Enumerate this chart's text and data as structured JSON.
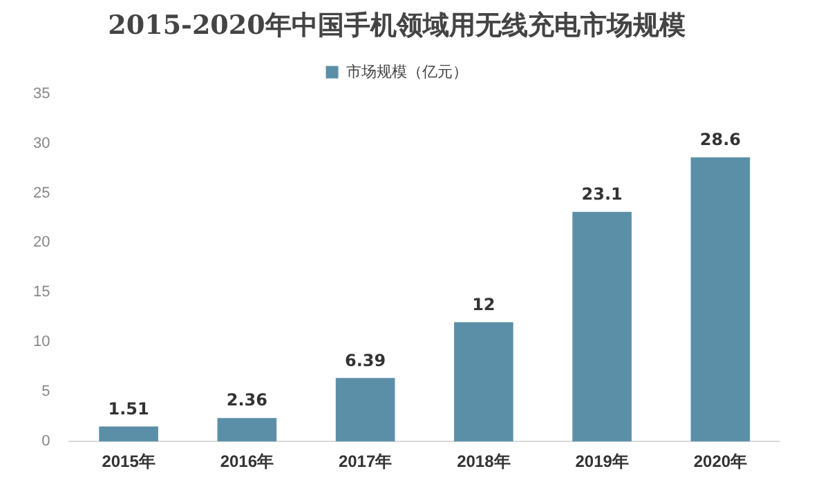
{
  "chart_data": {
    "type": "bar",
    "title": "2015-2020年中国手机领域用无线充电市场规模",
    "categories": [
      "2015年",
      "2016年",
      "2017年",
      "2018年",
      "2019年",
      "2020年"
    ],
    "series": [
      {
        "name": "市场规模（亿元）",
        "color": "#5b8fa8",
        "values": [
          1.51,
          2.36,
          6.39,
          12,
          23.1,
          28.6
        ]
      }
    ],
    "ylim": [
      0,
      35
    ],
    "yticks": [
      0,
      5,
      10,
      15,
      20,
      25,
      30,
      35
    ],
    "grid": false,
    "legend": "top",
    "data_labels": true
  }
}
